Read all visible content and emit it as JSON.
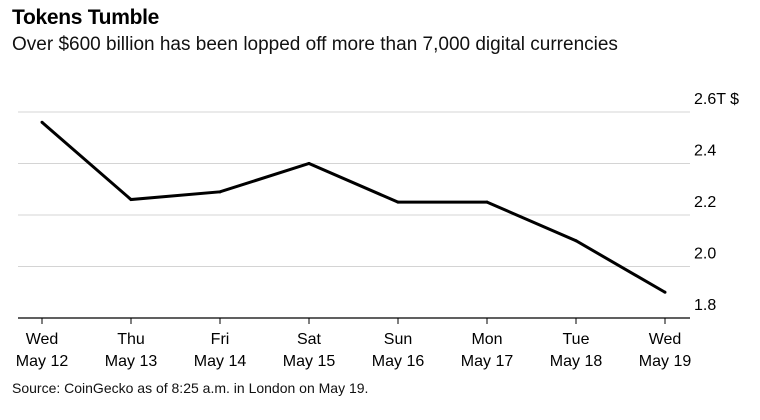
{
  "title": "Tokens Tumble",
  "subtitle": "Over $600 billion has been lopped off more than 7,000 digital currencies",
  "source": "Source: CoinGecko as of 8:25 a.m. in London on May 19.",
  "colors": {
    "line": "#000000",
    "grid": "#d4d4d4",
    "axis": "#000000"
  },
  "chart_data": {
    "type": "line",
    "title": "Tokens Tumble",
    "subtitle": "Over $600 billion has been lopped off more than 7,000 digital currencies",
    "xlabel": "",
    "ylabel": "",
    "y_unit_label": "2.6T $",
    "categories": [
      [
        "Wed",
        "May 12"
      ],
      [
        "Thu",
        "May 13"
      ],
      [
        "Fri",
        "May 14"
      ],
      [
        "Sat",
        "May 15"
      ],
      [
        "Sun",
        "May 16"
      ],
      [
        "Mon",
        "May 17"
      ],
      [
        "Tue",
        "May 18"
      ],
      [
        "Wed",
        "May 19"
      ]
    ],
    "series": [
      {
        "values": [
          2.56,
          2.26,
          2.29,
          2.4,
          2.25,
          2.25,
          2.1,
          1.9
        ]
      }
    ],
    "yticks": [
      {
        "value": 2.6,
        "label": "2.6T $"
      },
      {
        "value": 2.4,
        "label": "2.4"
      },
      {
        "value": 2.2,
        "label": "2.2"
      },
      {
        "value": 2.0,
        "label": "2.0"
      },
      {
        "value": 1.8,
        "label": "1.8"
      }
    ],
    "ylim": [
      1.8,
      2.6
    ],
    "grid": true,
    "yaxis_position": "right",
    "legend": "none"
  }
}
